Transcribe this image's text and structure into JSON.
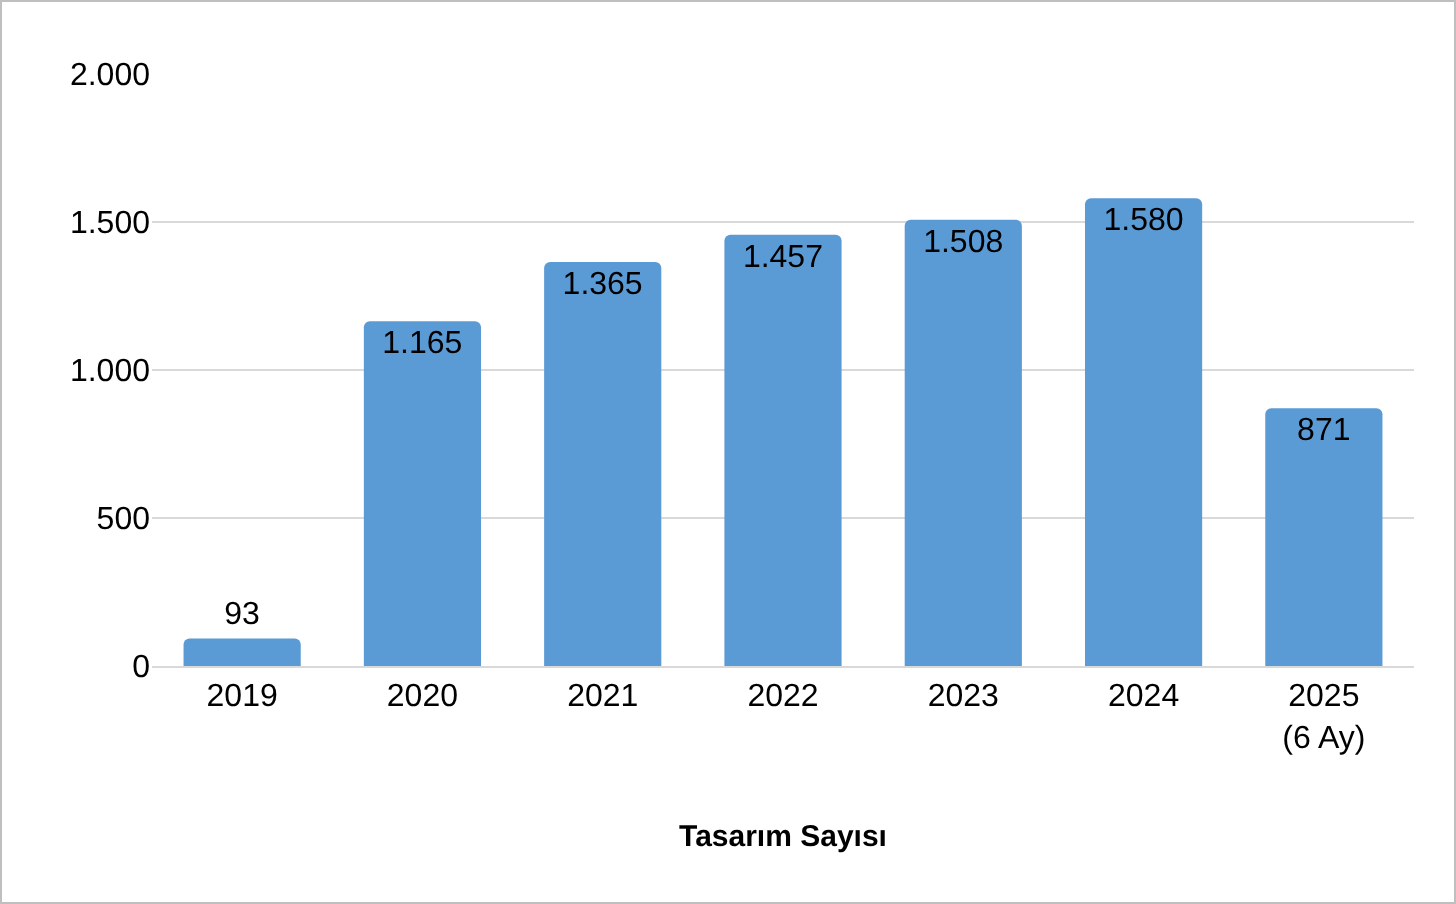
{
  "chart_data": {
    "type": "bar",
    "xlabel": "Tasarım Sayısı",
    "categories": [
      "2019",
      "2020",
      "2021",
      "2022",
      "2023",
      "2024",
      "2025\n(6 Ay)"
    ],
    "values": [
      93,
      1165,
      1365,
      1457,
      1508,
      1580,
      871
    ],
    "value_labels": [
      "93",
      "1.165",
      "1.365",
      "1.457",
      "1.508",
      "1.580",
      "871"
    ],
    "color": "#5b9bd5",
    "ylim": [
      0,
      2000
    ],
    "yticks": [
      {
        "value": 0,
        "label": "0"
      },
      {
        "value": 500,
        "label": "500"
      },
      {
        "value": 1000,
        "label": "1.000"
      },
      {
        "value": 1500,
        "label": "1.500"
      },
      {
        "value": 2000,
        "label": "2.000"
      }
    ],
    "grid": "y"
  }
}
